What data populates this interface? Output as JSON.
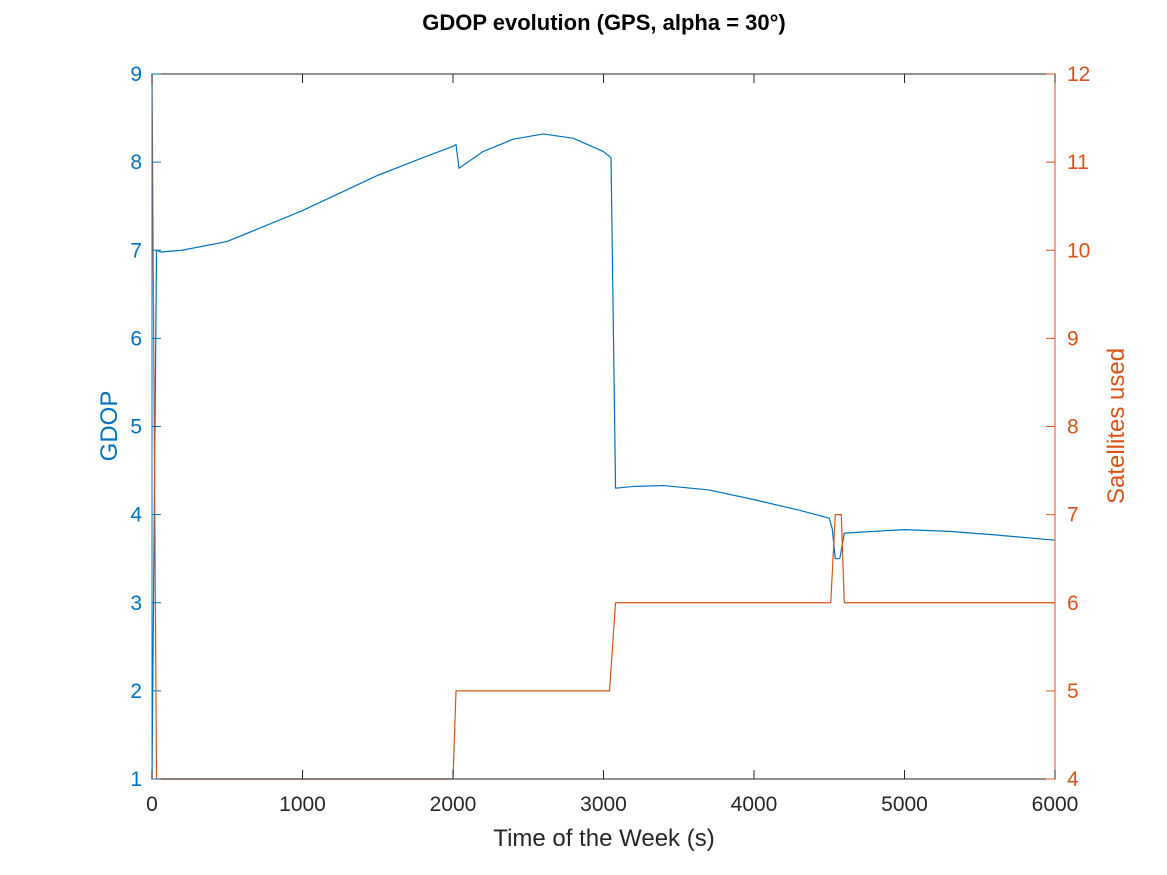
{
  "chart_data": {
    "type": "line",
    "title": "GDOP evolution (GPS, alpha = 30°)",
    "xlabel": "Time of the Week (s)",
    "ylabel_left": "GDOP",
    "ylabel_right": "Satellites used",
    "xlim": [
      0,
      6000
    ],
    "ylim_left": [
      1,
      9
    ],
    "ylim_right": [
      4,
      12
    ],
    "x_ticks": [
      "0",
      "1000",
      "2000",
      "3000",
      "4000",
      "5000",
      "6000"
    ],
    "y_left_ticks": [
      "1",
      "2",
      "3",
      "4",
      "5",
      "6",
      "7",
      "8",
      "9"
    ],
    "y_right_ticks": [
      "4",
      "5",
      "6",
      "7",
      "8",
      "9",
      "10",
      "11",
      "12"
    ],
    "grid": false,
    "colors": {
      "left": "#0072BD",
      "right": "#D95319",
      "axis": "#262626"
    },
    "series": [
      {
        "axis": "left",
        "x": [
          0,
          30,
          60,
          200,
          500,
          1000,
          1500,
          1800,
          2000,
          2020,
          2040,
          2200,
          2400,
          2600,
          2800,
          3000,
          3050,
          3080,
          3200,
          3400,
          3700,
          4000,
          4300,
          4500,
          4520,
          4540,
          4570,
          4600,
          4700,
          5000,
          5300,
          5600,
          6000
        ],
        "y": [
          1.0,
          7.0,
          6.98,
          7.0,
          7.1,
          7.45,
          7.85,
          8.05,
          8.18,
          8.2,
          7.93,
          8.12,
          8.26,
          8.32,
          8.27,
          8.12,
          8.05,
          4.3,
          4.32,
          4.33,
          4.28,
          4.17,
          4.05,
          3.96,
          3.84,
          3.5,
          3.5,
          3.79,
          3.8,
          3.83,
          3.81,
          3.77,
          3.71
        ]
      },
      {
        "axis": "right",
        "x": [
          0,
          30,
          40,
          1980,
          2000,
          2020,
          3000,
          3040,
          3080,
          4480,
          4510,
          4540,
          4580,
          4600,
          6000
        ],
        "y": [
          12,
          4,
          4,
          4,
          4,
          5,
          5,
          5,
          6,
          6,
          6,
          7,
          7,
          6,
          6
        ]
      }
    ]
  }
}
